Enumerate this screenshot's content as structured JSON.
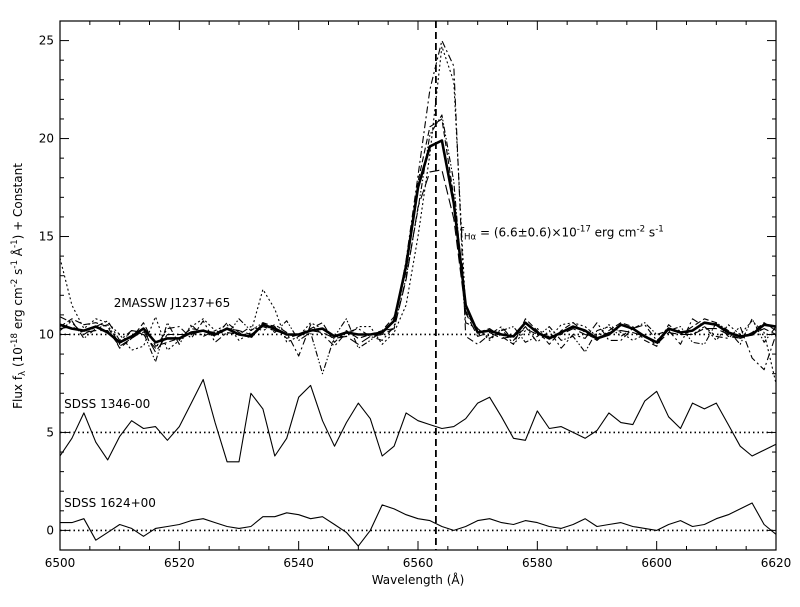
{
  "chart_data": {
    "type": "line",
    "xlabel": "Wavelength (Å)",
    "ylabel": "Flux f_λ (10^-18 erg cm^-2 s^-1 Å^-1) + Constant",
    "xlim": [
      6500,
      6620
    ],
    "ylim": [
      -1,
      26
    ],
    "x_ticks": [
      6500,
      6520,
      6540,
      6560,
      6580,
      6600,
      6620
    ],
    "y_ticks": [
      0,
      5,
      10,
      15,
      20,
      25
    ],
    "grid": false,
    "reference_lines": {
      "vertical_x": 6563,
      "horizontal_y": [
        10,
        5,
        0
      ]
    },
    "annotations": [
      {
        "text": "2MASSW J1237+65",
        "x": 6509,
        "y": 11.4
      },
      {
        "text": "SDSS 1346-00",
        "x": 6500.7,
        "y": 6.25
      },
      {
        "text": "SDSS 1624+00",
        "x": 6500.7,
        "y": 1.2
      },
      {
        "text": "f_Hα = (6.6±0.6)×10^-17 erg cm^-2 s^-1",
        "x": 6567,
        "y": 15
      }
    ],
    "x": [
      6500,
      6502,
      6504,
      6506,
      6508,
      6510,
      6512,
      6514,
      6516,
      6518,
      6520,
      6522,
      6524,
      6526,
      6528,
      6530,
      6532,
      6534,
      6536,
      6538,
      6540,
      6542,
      6544,
      6546,
      6548,
      6550,
      6552,
      6554,
      6556,
      6558,
      6560,
      6562,
      6564,
      6566,
      6568,
      6570,
      6572,
      6574,
      6576,
      6578,
      6580,
      6582,
      6584,
      6586,
      6588,
      6590,
      6592,
      6594,
      6596,
      6598,
      6600,
      6602,
      6604,
      6606,
      6608,
      6610,
      6612,
      6614,
      6616,
      6618,
      6620
    ],
    "series": [
      {
        "style": "solid-thick",
        "values": [
          10.5,
          10.3,
          10.2,
          10.4,
          10.1,
          9.6,
          9.9,
          10.3,
          9.6,
          9.8,
          9.8,
          10.1,
          10.2,
          10,
          10.3,
          10,
          9.9,
          10.5,
          10.3,
          10,
          10,
          10.2,
          10.3,
          9.9,
          10.1,
          10,
          10,
          10.1,
          10.7,
          13.5,
          17.5,
          19.6,
          19.9,
          16.7,
          11.5,
          10.1,
          10.2,
          10,
          9.9,
          10.6,
          10.1,
          9.8,
          10.1,
          10.4,
          10.2,
          9.8,
          10,
          10.5,
          10.3,
          9.9,
          9.6,
          10.3,
          10.1,
          10.2,
          10.6,
          10.5,
          10.1,
          9.9,
          10,
          10.5,
          10.4
        ]
      },
      {
        "style": "dashed",
        "values": [
          10.4,
          10.8,
          10.5,
          10.6,
          10.4,
          9.3,
          9.8,
          10.6,
          9.4,
          9.6,
          9.8,
          10.3,
          10.2,
          9.9,
          10.6,
          10.1,
          9.8,
          10.6,
          10.4,
          9.8,
          10,
          10.3,
          10.6,
          9.6,
          10.2,
          9.8,
          10,
          10.2,
          10.9,
          13.2,
          17.8,
          20.6,
          21,
          17,
          11.2,
          10.1,
          10.3,
          9.9,
          9.5,
          10.8,
          10.2,
          9.5,
          10.2,
          10.6,
          10.1,
          9.7,
          10.2,
          10.6,
          10.4,
          9.7,
          9.4,
          10.5,
          10,
          10.4,
          10.8,
          10.6,
          9.9,
          9.8,
          10.1,
          10.6,
          10.2
        ]
      },
      {
        "style": "dash-dot",
        "values": [
          10.9,
          10.6,
          10,
          10.4,
          10.7,
          9.7,
          10.2,
          10,
          9.3,
          10.3,
          10.4,
          9.8,
          10.7,
          9.6,
          10.1,
          10,
          10.4,
          10.2,
          10.5,
          10.1,
          8.9,
          10.5,
          10,
          9.4,
          10.1,
          10.3,
          9.9,
          9.7,
          10.4,
          13.8,
          18.1,
          22.5,
          25,
          23.7,
          9.9,
          9.5,
          10,
          10.4,
          9.7,
          10.4,
          9.6,
          10.2,
          9.3,
          10,
          9.8,
          10.6,
          9.7,
          9.7,
          10.3,
          10.5,
          9.7,
          10.2,
          9.5,
          10.8,
          10.4,
          9.9,
          9.8,
          10.4,
          8.8,
          8.2,
          10
        ]
      },
      {
        "style": "dotted",
        "values": [
          13.9,
          11.5,
          10.3,
          10.8,
          10.6,
          10,
          9.2,
          9.4,
          10.9,
          9.2,
          9.7,
          10.4,
          10.8,
          10.2,
          10.5,
          9.7,
          10.1,
          12.3,
          11.3,
          9.6,
          9.9,
          10.6,
          10.3,
          9.9,
          9.9,
          10.4,
          10.4,
          9.5,
          10.1,
          11.5,
          15,
          19.2,
          24.7,
          22.9,
          11.2,
          10.3,
          9.7,
          10.3,
          9.5,
          10.2,
          10.3,
          9.8,
          10.5,
          10.6,
          10.4,
          9.9,
          10.5,
          10.1,
          9.7,
          10,
          9.4,
          10.3,
          10.2,
          10,
          10.4,
          9.7,
          10.5,
          10,
          10.7,
          10.1,
          7.5
        ]
      },
      {
        "style": "dash-dot-dot",
        "values": [
          10.2,
          10.7,
          9.8,
          10.3,
          10.5,
          9.5,
          10.2,
          10.1,
          8.6,
          10.6,
          9.5,
          10.5,
          9.9,
          10.2,
          10,
          10.8,
          10.2,
          10.6,
          10.1,
          10.7,
          9.7,
          10.1,
          8,
          9.9,
          10.8,
          9.3,
          9.7,
          10.2,
          10.3,
          12.9,
          16.4,
          20.2,
          21.2,
          17.8,
          10.6,
          10.3,
          9.8,
          10.2,
          10.4,
          9.6,
          9.9,
          10.4,
          9.7,
          9.9,
          9.1,
          10.2,
          10.4,
          9.9,
          10.3,
          10.6,
          10,
          10.2,
          10.4,
          9.6,
          9.5,
          10.6,
          10.2,
          9.5,
          10.8,
          9.6,
          10.4
        ]
      },
      {
        "style": "long-dash",
        "values": [
          10.3,
          10.4,
          10.1,
          10.2,
          10.2,
          9.4,
          9.8,
          10.2,
          9.1,
          10,
          10,
          10,
          10.2,
          10.1,
          10.3,
          10.2,
          10,
          10.4,
          10.2,
          10,
          9.9,
          10.2,
          10.1,
          9.8,
          9.9,
          9.5,
          9.9,
          10,
          10.3,
          12.8,
          16.5,
          18.3,
          18.4,
          15.9,
          11.1,
          9.9,
          10.1,
          9.8,
          9.9,
          10.3,
          10,
          9.9,
          10,
          10.3,
          10,
          9.8,
          10.1,
          10.2,
          10.1,
          9.9,
          9.5,
          10.1,
          10,
          10,
          10.3,
          10.3,
          10,
          9.8,
          10,
          10.3,
          10
        ]
      },
      {
        "name": "SDSS 1346-00",
        "style": "solid",
        "values": [
          3.8,
          4.7,
          6,
          4.5,
          3.6,
          4.8,
          5.6,
          5.2,
          5.3,
          4.6,
          5.3,
          6.5,
          7.7,
          5.5,
          3.5,
          3.5,
          7,
          6.2,
          3.8,
          4.7,
          6.8,
          7.4,
          5.6,
          4.3,
          5.5,
          6.5,
          5.7,
          3.8,
          4.3,
          6,
          5.6,
          5.4,
          5.2,
          5.3,
          5.7,
          6.5,
          6.8,
          5.8,
          4.7,
          4.6,
          6.1,
          5.2,
          5.3,
          5,
          4.7,
          5.1,
          6,
          5.5,
          5.4,
          6.6,
          7.1,
          5.8,
          5.2,
          6.5,
          6.2,
          6.5,
          5.4,
          4.3,
          3.8,
          4.1,
          4.4
        ]
      },
      {
        "name": "SDSS 1624+00",
        "style": "solid",
        "values": [
          0.4,
          0.4,
          0.6,
          -0.5,
          -0.1,
          0.3,
          0.1,
          -0.3,
          0.1,
          0.2,
          0.3,
          0.5,
          0.6,
          0.4,
          0.2,
          0.1,
          0.2,
          0.7,
          0.7,
          0.9,
          0.8,
          0.6,
          0.7,
          0.3,
          -0.1,
          -0.8,
          0,
          1.3,
          1.1,
          0.8,
          0.6,
          0.5,
          0.2,
          0,
          0.2,
          0.5,
          0.6,
          0.4,
          0.3,
          0.5,
          0.4,
          0.2,
          0.1,
          0.3,
          0.6,
          0.2,
          0.3,
          0.4,
          0.2,
          0.1,
          0,
          0.3,
          0.5,
          0.2,
          0.3,
          0.6,
          0.8,
          1.1,
          1.4,
          0.3,
          -0.2
        ]
      }
    ]
  }
}
